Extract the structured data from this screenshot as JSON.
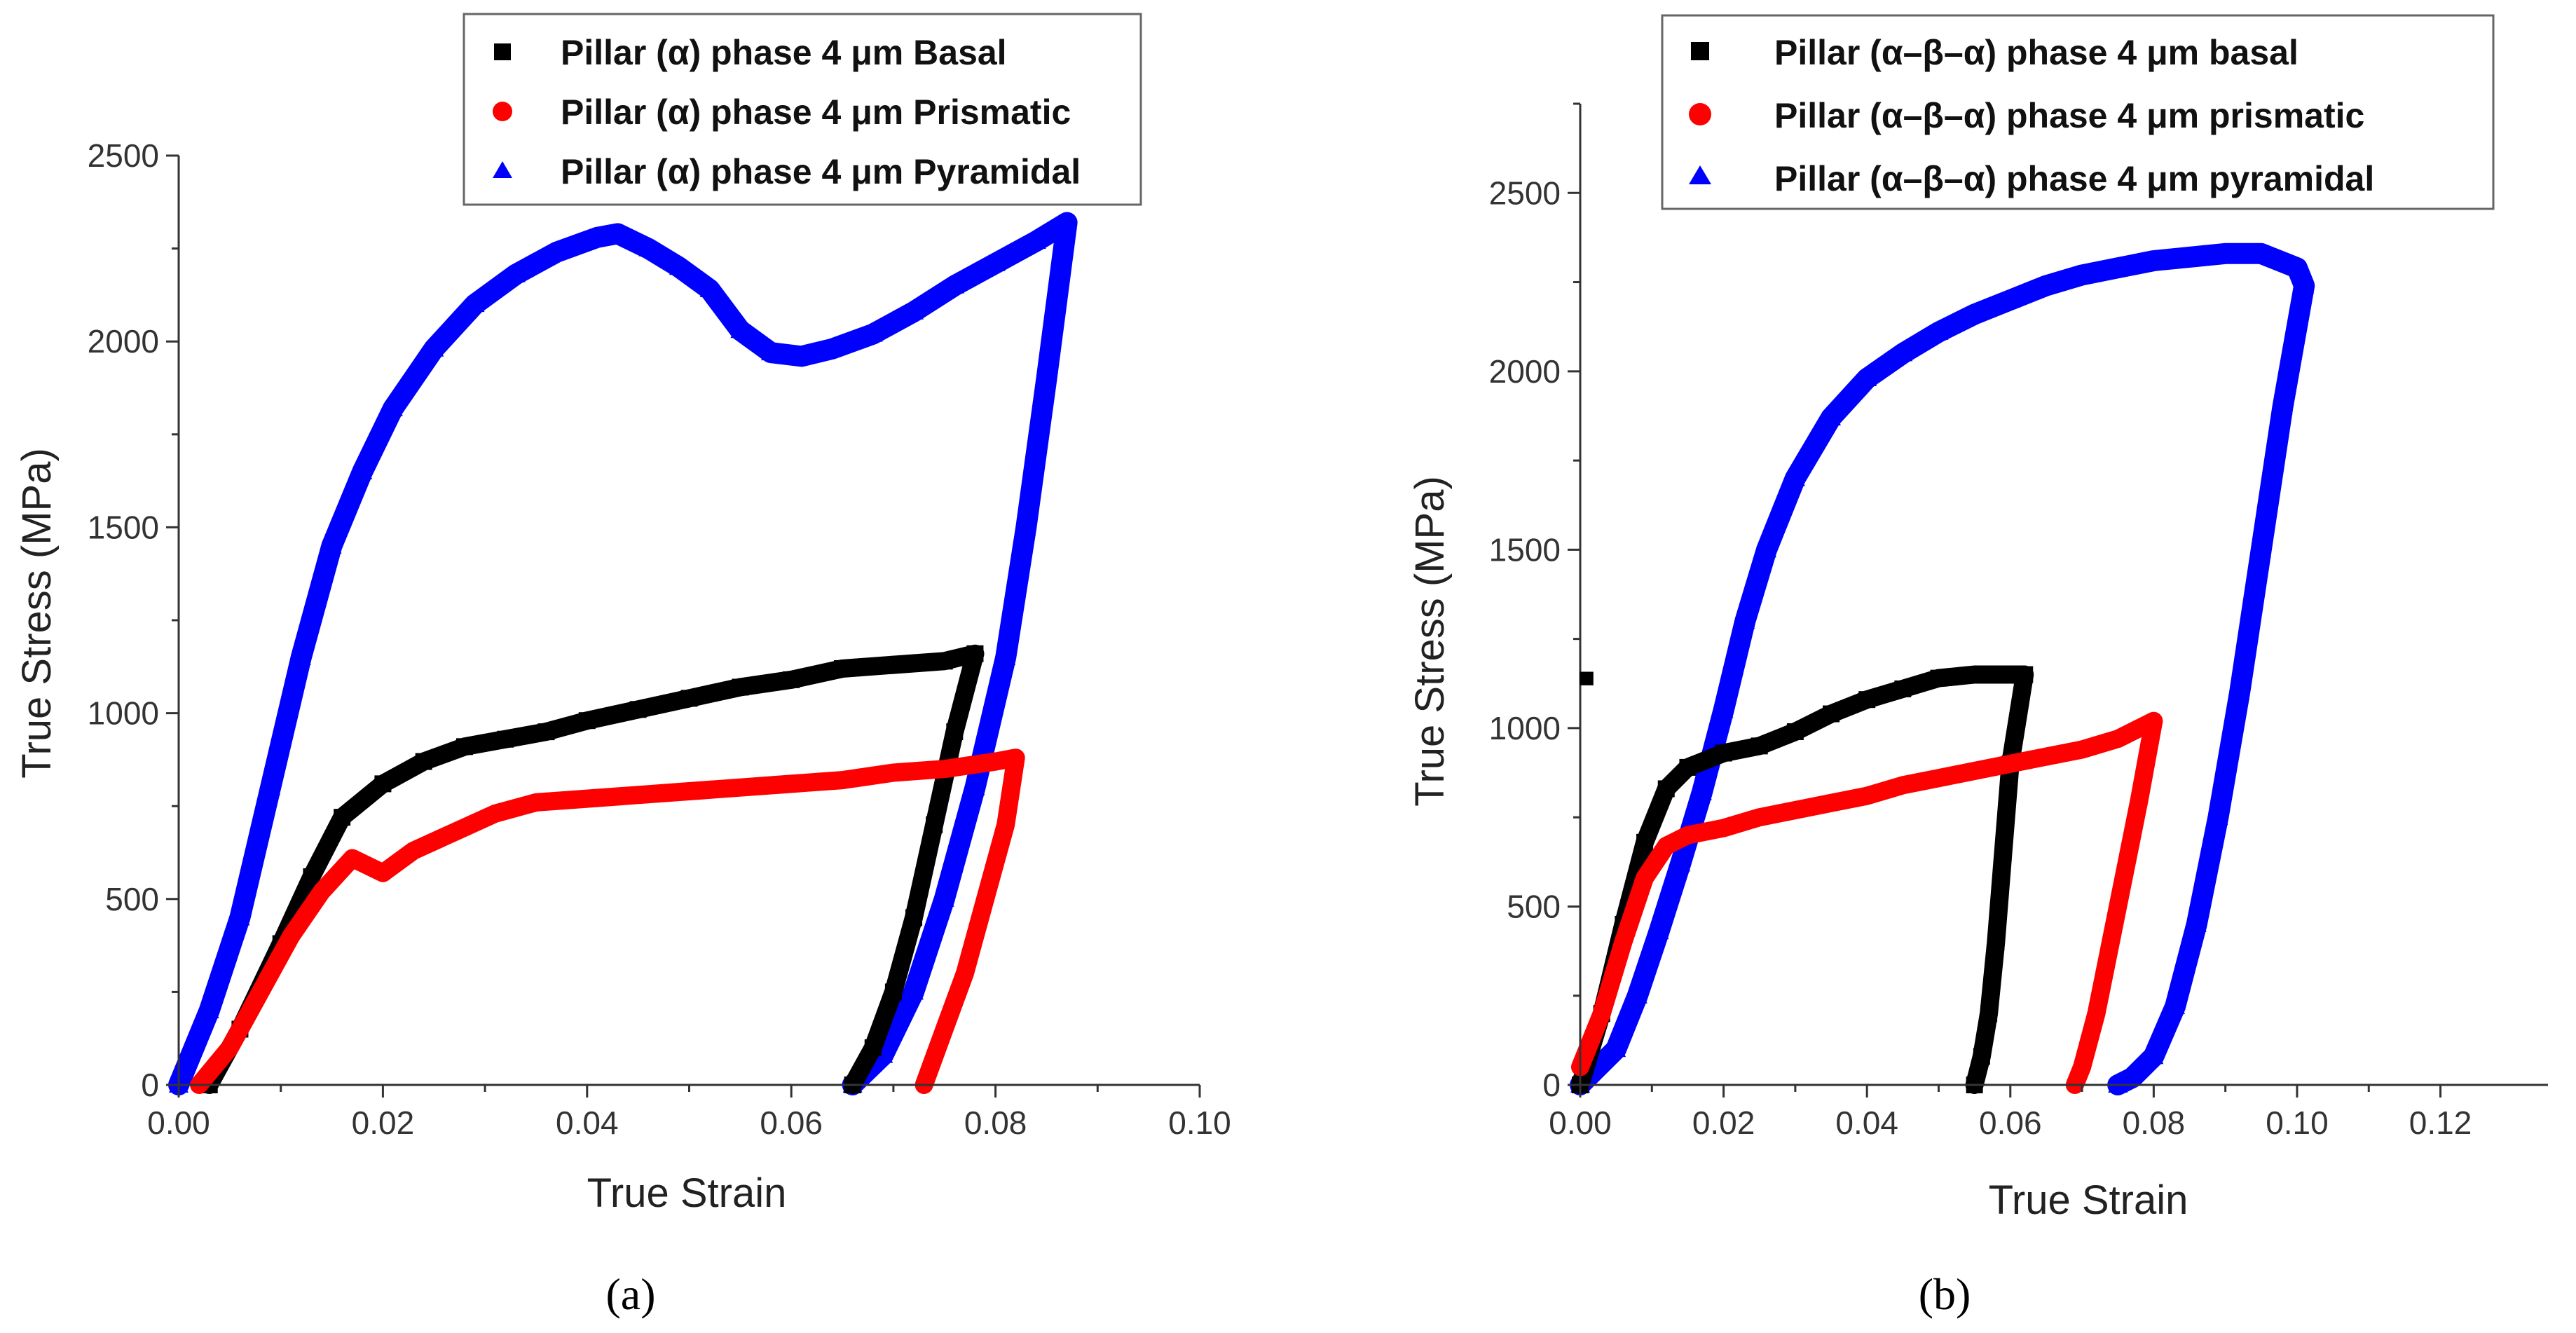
{
  "chart_data": [
    {
      "type": "scatter",
      "panel_label": "(a)",
      "xlabel": "True Strain",
      "ylabel": "True Stress (MPa)",
      "xlim": [
        0,
        0.1
      ],
      "ylim": [
        0,
        2500
      ],
      "xticks": [
        0.0,
        0.02,
        0.04,
        0.06,
        0.08,
        0.1
      ],
      "xtick_labels": [
        "0.00",
        "0.02",
        "0.04",
        "0.06",
        "0.08",
        "0.10"
      ],
      "yticks": [
        0,
        500,
        1000,
        1500,
        2000,
        2500
      ],
      "ytick_labels": [
        "0",
        "500",
        "1000",
        "1500",
        "2000",
        "2500"
      ],
      "legend_position": "top-right",
      "series": [
        {
          "name": "Pillar (α) phase 4 μm Basal",
          "color": "#000000",
          "marker": "square",
          "points": [
            [
              0.003,
              0
            ],
            [
              0.006,
              150
            ],
            [
              0.01,
              380
            ],
            [
              0.013,
              560
            ],
            [
              0.016,
              720
            ],
            [
              0.02,
              810
            ],
            [
              0.024,
              870
            ],
            [
              0.028,
              910
            ],
            [
              0.032,
              930
            ],
            [
              0.036,
              950
            ],
            [
              0.04,
              980
            ],
            [
              0.045,
              1010
            ],
            [
              0.05,
              1040
            ],
            [
              0.055,
              1070
            ],
            [
              0.06,
              1090
            ],
            [
              0.065,
              1120
            ],
            [
              0.07,
              1130
            ],
            [
              0.075,
              1140
            ],
            [
              0.078,
              1160
            ],
            [
              0.076,
              950
            ],
            [
              0.074,
              700
            ],
            [
              0.072,
              450
            ],
            [
              0.07,
              250
            ],
            [
              0.068,
              100
            ],
            [
              0.066,
              0
            ]
          ]
        },
        {
          "name": "Pillar  (α) phase 4 μm Prismatic",
          "color": "#ff0000",
          "marker": "circle",
          "points": [
            [
              0.002,
              0
            ],
            [
              0.005,
              100
            ],
            [
              0.008,
              250
            ],
            [
              0.011,
              400
            ],
            [
              0.014,
              520
            ],
            [
              0.017,
              610
            ],
            [
              0.02,
              570
            ],
            [
              0.023,
              630
            ],
            [
              0.027,
              680
            ],
            [
              0.031,
              730
            ],
            [
              0.035,
              760
            ],
            [
              0.04,
              770
            ],
            [
              0.045,
              780
            ],
            [
              0.05,
              790
            ],
            [
              0.055,
              800
            ],
            [
              0.06,
              810
            ],
            [
              0.065,
              820
            ],
            [
              0.07,
              840
            ],
            [
              0.075,
              850
            ],
            [
              0.08,
              870
            ],
            [
              0.082,
              880
            ],
            [
              0.081,
              700
            ],
            [
              0.079,
              500
            ],
            [
              0.077,
              300
            ],
            [
              0.075,
              150
            ],
            [
              0.073,
              0
            ]
          ]
        },
        {
          "name": "Pillar (α) phase  4 μm Pyramidal",
          "color": "#0000ff",
          "marker": "triangle",
          "points": [
            [
              0.0,
              0
            ],
            [
              0.003,
              200
            ],
            [
              0.006,
              450
            ],
            [
              0.009,
              800
            ],
            [
              0.012,
              1150
            ],
            [
              0.015,
              1450
            ],
            [
              0.018,
              1650
            ],
            [
              0.021,
              1820
            ],
            [
              0.025,
              1980
            ],
            [
              0.029,
              2100
            ],
            [
              0.033,
              2180
            ],
            [
              0.037,
              2240
            ],
            [
              0.041,
              2280
            ],
            [
              0.043,
              2290
            ],
            [
              0.046,
              2250
            ],
            [
              0.049,
              2200
            ],
            [
              0.052,
              2140
            ],
            [
              0.055,
              2030
            ],
            [
              0.058,
              1970
            ],
            [
              0.061,
              1960
            ],
            [
              0.064,
              1980
            ],
            [
              0.068,
              2020
            ],
            [
              0.072,
              2080
            ],
            [
              0.076,
              2150
            ],
            [
              0.08,
              2210
            ],
            [
              0.084,
              2270
            ],
            [
              0.087,
              2320
            ],
            [
              0.085,
              1900
            ],
            [
              0.083,
              1500
            ],
            [
              0.081,
              1150
            ],
            [
              0.078,
              800
            ],
            [
              0.075,
              500
            ],
            [
              0.072,
              250
            ],
            [
              0.069,
              80
            ],
            [
              0.066,
              0
            ]
          ]
        }
      ]
    },
    {
      "type": "scatter",
      "panel_label": "(b)",
      "xlabel": "True Strain",
      "ylabel": "True Stress (MPa)",
      "xlim": [
        0,
        0.135
      ],
      "ylim": [
        0,
        2750
      ],
      "xticks": [
        0.0,
        0.02,
        0.04,
        0.06,
        0.08,
        0.1,
        0.12
      ],
      "xtick_labels": [
        "0.00",
        "0.02",
        "0.04",
        "0.06",
        "0.08",
        "0.10",
        "0.12"
      ],
      "yticks": [
        0,
        500,
        1000,
        1500,
        2000,
        2500
      ],
      "ytick_labels": [
        "0",
        "500",
        "1000",
        "1500",
        "2000",
        "2500"
      ],
      "legend_position": "top-right",
      "series": [
        {
          "name": "Pillar  (α–β–α) phase 4 μm basal",
          "color": "#000000",
          "marker": "square",
          "points": [
            [
              0.0,
              0
            ],
            [
              0.003,
              200
            ],
            [
              0.006,
              450
            ],
            [
              0.009,
              680
            ],
            [
              0.012,
              830
            ],
            [
              0.015,
              890
            ],
            [
              0.02,
              930
            ],
            [
              0.025,
              950
            ],
            [
              0.03,
              990
            ],
            [
              0.035,
              1040
            ],
            [
              0.04,
              1080
            ],
            [
              0.045,
              1110
            ],
            [
              0.05,
              1140
            ],
            [
              0.055,
              1150
            ],
            [
              0.06,
              1150
            ],
            [
              0.062,
              1150
            ],
            [
              0.06,
              900
            ],
            [
              0.059,
              650
            ],
            [
              0.058,
              400
            ],
            [
              0.057,
              200
            ],
            [
              0.056,
              80
            ],
            [
              0.055,
              0
            ]
          ]
        },
        {
          "name": "Pillar (α–β–α) phase 4 μm prismatic",
          "color": "#ff0000",
          "marker": "circle",
          "points": [
            [
              0.0,
              50
            ],
            [
              0.003,
              200
            ],
            [
              0.006,
              400
            ],
            [
              0.009,
              580
            ],
            [
              0.012,
              670
            ],
            [
              0.015,
              700
            ],
            [
              0.02,
              720
            ],
            [
              0.025,
              750
            ],
            [
              0.03,
              770
            ],
            [
              0.035,
              790
            ],
            [
              0.04,
              810
            ],
            [
              0.045,
              840
            ],
            [
              0.05,
              860
            ],
            [
              0.055,
              880
            ],
            [
              0.06,
              900
            ],
            [
              0.065,
              920
            ],
            [
              0.07,
              940
            ],
            [
              0.075,
              970
            ],
            [
              0.078,
              1000
            ],
            [
              0.08,
              1020
            ],
            [
              0.078,
              800
            ],
            [
              0.076,
              600
            ],
            [
              0.074,
              400
            ],
            [
              0.072,
              200
            ],
            [
              0.07,
              50
            ],
            [
              0.069,
              0
            ]
          ]
        },
        {
          "name": "Pillar (α–β–α) phase 4 μm pyramidal",
          "color": "#0000ff",
          "marker": "triangle",
          "points": [
            [
              0.0,
              0
            ],
            [
              0.005,
              100
            ],
            [
              0.008,
              250
            ],
            [
              0.011,
              430
            ],
            [
              0.014,
              620
            ],
            [
              0.017,
              820
            ],
            [
              0.02,
              1050
            ],
            [
              0.023,
              1300
            ],
            [
              0.026,
              1500
            ],
            [
              0.03,
              1700
            ],
            [
              0.035,
              1870
            ],
            [
              0.04,
              1980
            ],
            [
              0.045,
              2050
            ],
            [
              0.05,
              2110
            ],
            [
              0.055,
              2160
            ],
            [
              0.06,
              2200
            ],
            [
              0.065,
              2240
            ],
            [
              0.07,
              2270
            ],
            [
              0.075,
              2290
            ],
            [
              0.08,
              2310
            ],
            [
              0.085,
              2320
            ],
            [
              0.09,
              2330
            ],
            [
              0.095,
              2330
            ],
            [
              0.1,
              2290
            ],
            [
              0.101,
              2240
            ],
            [
              0.098,
              1900
            ],
            [
              0.095,
              1500
            ],
            [
              0.092,
              1100
            ],
            [
              0.089,
              750
            ],
            [
              0.086,
              450
            ],
            [
              0.083,
              220
            ],
            [
              0.08,
              80
            ],
            [
              0.077,
              20
            ],
            [
              0.075,
              0
            ]
          ]
        }
      ]
    }
  ]
}
